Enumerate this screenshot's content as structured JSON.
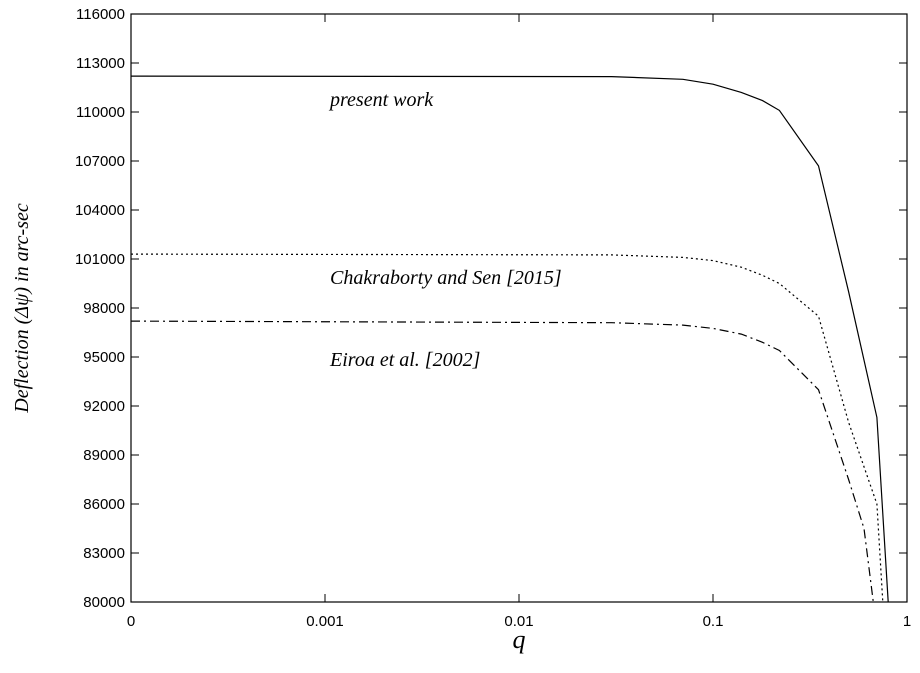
{
  "chart_data": {
    "type": "line",
    "title": "",
    "xlabel": "q",
    "ylabel": "Deflection (Δψ) in arc-sec",
    "x_scale": "log, with origin at q = 0",
    "xlim": [
      0,
      1
    ],
    "ylim": [
      80000,
      116000
    ],
    "x_ticks": [
      "0",
      "0.001",
      "0.01",
      "0.1",
      "1"
    ],
    "y_ticks": [
      "80000",
      "83000",
      "86000",
      "89000",
      "92000",
      "95000",
      "98000",
      "101000",
      "104000",
      "107000",
      "110000",
      "113000",
      "116000"
    ],
    "grid": false,
    "legend": "none (series labelled inline)",
    "series": [
      {
        "name": "present work",
        "line_style": "solid",
        "color": "#000000",
        "x": [
          0.0001,
          0.03,
          0.07,
          0.1,
          0.14,
          0.18,
          0.22,
          0.35,
          0.5,
          0.7,
          0.8
        ],
        "y": [
          112200,
          112170,
          112000,
          111700,
          111200,
          110700,
          110100,
          106700,
          99000,
          91300,
          80000
        ]
      },
      {
        "name": "Chakraborty and Sen [2015]",
        "line_style": "dotted",
        "color": "#000000",
        "x": [
          0.0001,
          0.03,
          0.07,
          0.1,
          0.14,
          0.18,
          0.22,
          0.35,
          0.5,
          0.7,
          0.75
        ],
        "y": [
          101300,
          101250,
          101100,
          100900,
          100500,
          100000,
          99500,
          97500,
          91000,
          86000,
          80000
        ]
      },
      {
        "name": "Eiroa et al. [2002]",
        "line_style": "dash-dot",
        "color": "#000000",
        "x": [
          0.0001,
          0.03,
          0.07,
          0.1,
          0.14,
          0.18,
          0.22,
          0.35,
          0.5,
          0.6,
          0.67
        ],
        "y": [
          97200,
          97100,
          96950,
          96750,
          96400,
          95900,
          95400,
          93000,
          87500,
          84500,
          80000
        ]
      }
    ],
    "annotations": [
      {
        "text": "present work",
        "series": 0
      },
      {
        "text": "Chakraborty and Sen [2015]",
        "series": 1
      },
      {
        "text": "Eiroa et al. [2002]",
        "series": 2
      }
    ]
  }
}
